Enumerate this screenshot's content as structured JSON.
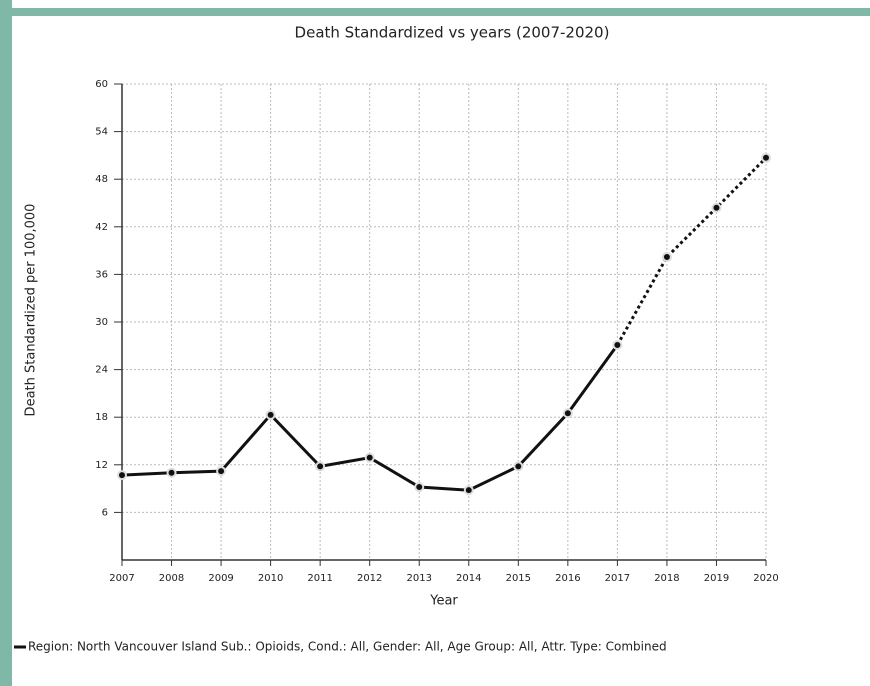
{
  "chart_data": {
    "type": "line",
    "title": "Death Standardized vs years (2007-2020)",
    "x_label": "Year",
    "y_label": "Death Standardized per 100,000",
    "x": [
      2007,
      2008,
      2009,
      2010,
      2011,
      2012,
      2013,
      2014,
      2015,
      2016,
      2017,
      2018,
      2019,
      2020
    ],
    "xlim": [
      2007,
      2020
    ],
    "xticks": [
      2007,
      2008,
      2009,
      2010,
      2011,
      2012,
      2013,
      2014,
      2015,
      2016,
      2017,
      2018,
      2019,
      2020
    ],
    "ylim": [
      0,
      60
    ],
    "yticks": [
      6,
      12,
      18,
      24,
      30,
      36,
      42,
      48,
      54,
      60
    ],
    "grid": true,
    "dotted_from": 2017,
    "series": [
      {
        "name": "Region: North Vancouver Island Sub.: Opioids, Cond.: All, Gender: All, Age Group: All, Attr. Type: Combined",
        "color": "#111111",
        "values": [
          10.7,
          11.0,
          11.2,
          18.3,
          11.8,
          12.9,
          9.2,
          8.8,
          11.8,
          18.5,
          27.1,
          38.2,
          44.4,
          50.7
        ]
      }
    ]
  }
}
